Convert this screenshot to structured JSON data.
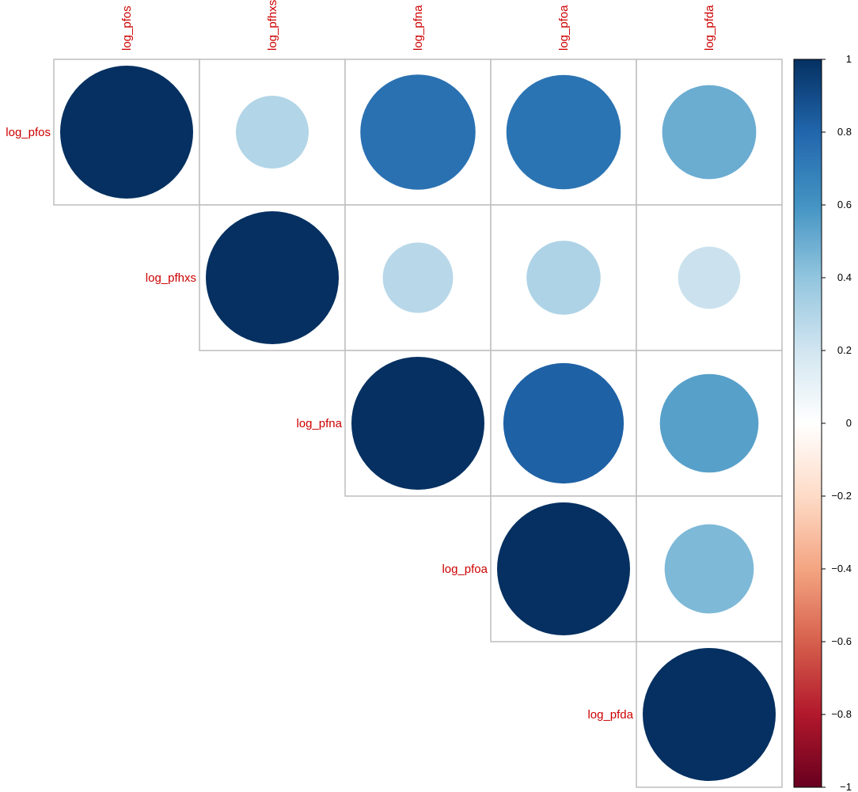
{
  "chart_data": {
    "type": "heatmap",
    "style": "correlation circle matrix, upper triangle",
    "variables": [
      "log_pfos",
      "log_pfhxs",
      "log_pfna",
      "log_pfoa",
      "log_pfda"
    ],
    "correlations": [
      [
        1.0,
        0.3,
        0.75,
        0.74,
        0.5
      ],
      [
        null,
        1.0,
        0.28,
        0.31,
        0.22
      ],
      [
        null,
        null,
        1.0,
        0.82,
        0.55
      ],
      [
        null,
        null,
        null,
        1.0,
        0.45
      ],
      [
        null,
        null,
        null,
        null,
        1.0
      ]
    ],
    "colorbar": {
      "range": [
        -1,
        1
      ],
      "ticks": [
        "1",
        "0.8",
        "0.6",
        "0.4",
        "0.2",
        "0",
        "−0.2",
        "−0.4",
        "−0.6",
        "−0.8",
        "−1"
      ]
    },
    "label_color": "#CC0000",
    "grid_color": "#BEBEBE",
    "palette": [
      "#67001F",
      "#B2182B",
      "#D6604D",
      "#F4A582",
      "#FDDBC7",
      "#FFFFFF",
      "#D1E5F0",
      "#92C5DE",
      "#4393C3",
      "#2166AC",
      "#053061"
    ]
  }
}
